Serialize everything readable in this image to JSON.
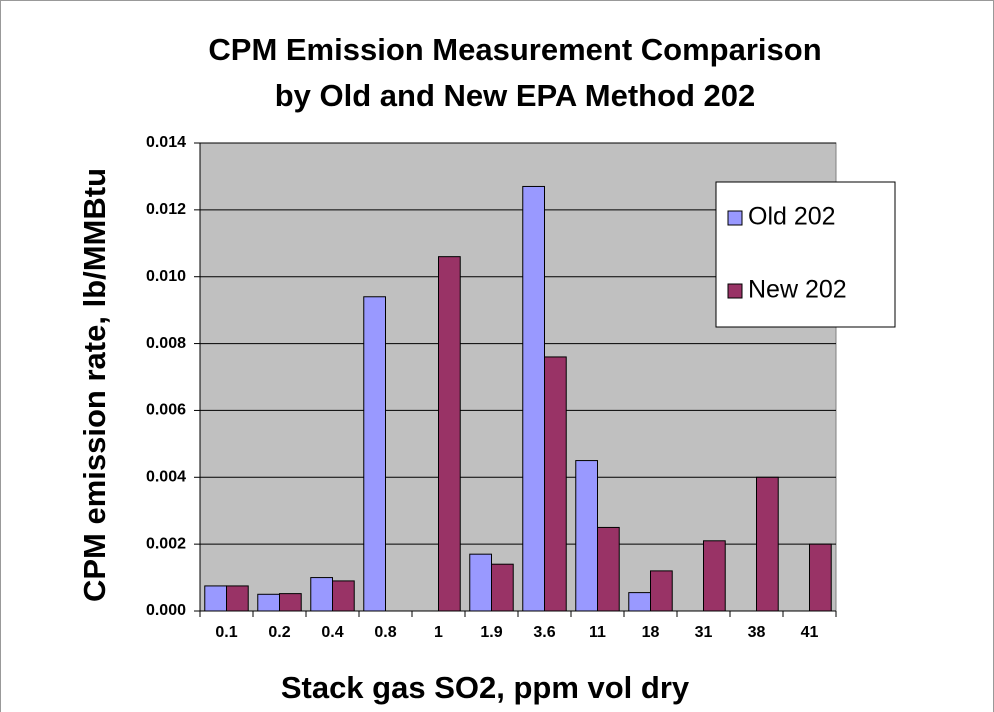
{
  "chart_data": {
    "type": "bar",
    "title": [
      "CPM Emission Measurement Comparison",
      "by Old and New EPA Method 202"
    ],
    "x_label": "Stack gas SO2, ppm vol dry",
    "y_label": "CPM emission rate, lb/MMBtu",
    "categories": [
      "0.1",
      "0.2",
      "0.4",
      "0.8",
      "1",
      "1.9",
      "3.6",
      "11",
      "18",
      "31",
      "38",
      "41"
    ],
    "series": [
      {
        "name": "Old 202",
        "color": "#9999ff",
        "values": [
          0.00075,
          0.0005,
          0.001,
          0.0094,
          null,
          0.0017,
          0.0127,
          0.0045,
          0.00055,
          null,
          null,
          null
        ]
      },
      {
        "name": "New 202",
        "color": "#993366",
        "values": [
          0.00075,
          0.00052,
          0.0009,
          null,
          0.0106,
          0.0014,
          0.0076,
          0.0025,
          0.0012,
          0.0021,
          0.004,
          0.002
        ]
      }
    ],
    "ylim": [
      0,
      0.014
    ],
    "yticks": [
      {
        "value": 0,
        "label": "0.000"
      },
      0.002,
      0.004,
      0.006,
      0.008,
      {
        "value": 0.01,
        "label": "0.010"
      },
      0.012,
      0.014
    ],
    "grid": true,
    "legend": "upper right",
    "plot_background": "#c0c0c0"
  }
}
